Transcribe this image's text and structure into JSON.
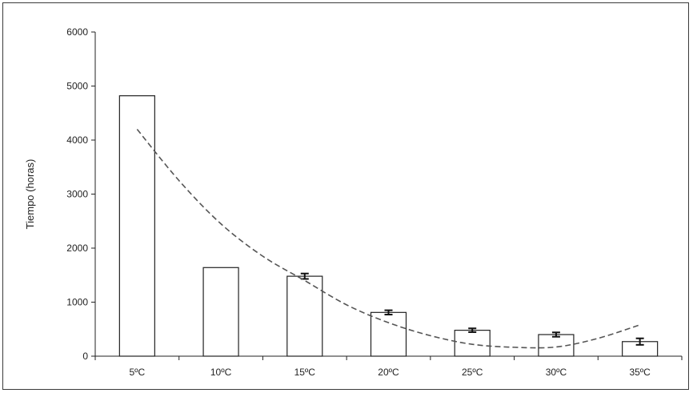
{
  "chart_data": {
    "type": "bar",
    "title": "",
    "xlabel": "",
    "ylabel": "Tiempo (horas)",
    "ylim": [
      0,
      6000
    ],
    "yticks": [
      0,
      1000,
      2000,
      3000,
      4000,
      5000,
      6000
    ],
    "categories": [
      "5ºC",
      "10ºC",
      "15ºC",
      "20ºC",
      "25ºC",
      "30ºC",
      "35ºC"
    ],
    "values": [
      4820,
      1640,
      1480,
      810,
      480,
      400,
      270
    ],
    "error": [
      null,
      null,
      50,
      40,
      35,
      40,
      60
    ],
    "grid": false,
    "legend": "none",
    "trendline": {
      "style": "dashed",
      "type": "polynomial",
      "x": [
        1,
        1.5,
        2,
        2.5,
        3,
        3.5,
        4,
        4.5,
        5,
        5.5,
        6,
        6.5,
        7
      ],
      "y": [
        4200,
        3250,
        2450,
        1850,
        1400,
        950,
        620,
        380,
        220,
        165,
        170,
        330,
        580
      ]
    },
    "colors": {
      "bar_fill": "#ffffff",
      "bar_stroke": "#222222",
      "trend": "#555555",
      "axis": "#222222"
    }
  }
}
